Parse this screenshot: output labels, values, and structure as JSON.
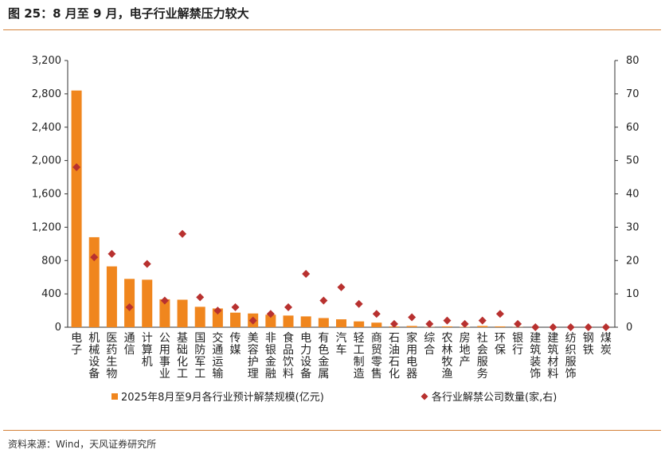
{
  "figure": {
    "title": "图 25：8 月至 9 月，电子行业解禁压力较大",
    "source": "资料来源：Wind，天风证券研究所"
  },
  "colors": {
    "bar": "#F0861E",
    "marker": "#B8312F",
    "rule": "#D4823A",
    "axis": "#333333"
  },
  "chart_data": {
    "type": "bar",
    "categories": [
      "电子",
      "机械设备",
      "医药生物",
      "通信",
      "计算机",
      "公用事业",
      "基础化工",
      "国防军工",
      "交通运输",
      "传媒",
      "美容护理",
      "非银金融",
      "食品饮料",
      "电力设备",
      "有色金属",
      "汽车",
      "轻工制造",
      "商贸零售",
      "石油石化",
      "家用电器",
      "综合",
      "农林牧渔",
      "房地产",
      "社会服务",
      "环保",
      "银行",
      "建筑装饰",
      "建筑材料",
      "纺织服饰",
      "钢铁",
      "煤炭"
    ],
    "series": [
      {
        "name": "2025年8月至9月各行业预计解禁规模(亿元)",
        "type": "bar",
        "axis": "left",
        "values": [
          2840,
          1080,
          730,
          580,
          570,
          335,
          330,
          245,
          225,
          175,
          165,
          150,
          140,
          130,
          110,
          95,
          70,
          55,
          10,
          15,
          3,
          10,
          5,
          15,
          10,
          3,
          0,
          0,
          0,
          0,
          0
        ]
      },
      {
        "name": "各行业解禁公司数量(家,右)",
        "type": "scatter",
        "axis": "right",
        "values": [
          48,
          21,
          22,
          6,
          19,
          8,
          28,
          9,
          5,
          6,
          2,
          4,
          6,
          16,
          8,
          12,
          7,
          4,
          1,
          3,
          1,
          2,
          1,
          2,
          4,
          1,
          0,
          0,
          0,
          0,
          0
        ]
      }
    ],
    "y_left": {
      "min": 0,
      "max": 3200,
      "ticks": [
        "0",
        "400",
        "800",
        "1,200",
        "1,600",
        "2,000",
        "2,400",
        "2,800",
        "3,200"
      ]
    },
    "y_right": {
      "min": 0,
      "max": 80,
      "ticks": [
        "0",
        "10",
        "20",
        "30",
        "40",
        "50",
        "60",
        "70",
        "80"
      ]
    },
    "legend": [
      "2025年8月至9月各行业预计解禁规模(亿元)",
      "各行业解禁公司数量(家,右)"
    ],
    "legend_position": "bottom"
  }
}
